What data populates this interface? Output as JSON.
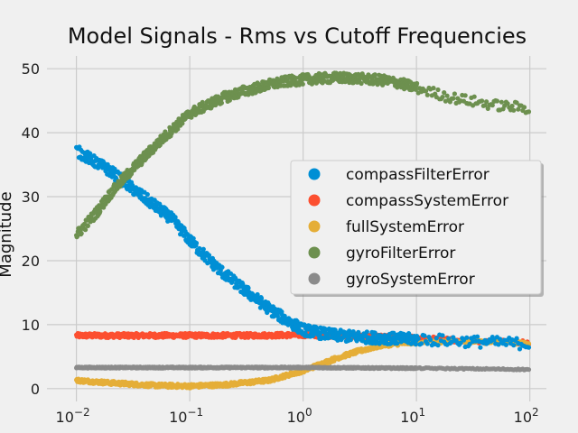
{
  "chart_data": {
    "type": "scatter",
    "title": "Model Signals - Rms vs Cutoff Frequencies",
    "ylabel": "Magnitude",
    "xlabel": "",
    "xscale": "log",
    "xlim": [
      0.0055,
      140
    ],
    "ylim": [
      -2,
      52
    ],
    "grid": true,
    "legend_placement": "center-right",
    "x_ticks": [
      {
        "value": 0.01,
        "base": "10",
        "exp": "−2"
      },
      {
        "value": 0.1,
        "base": "10",
        "exp": "−1"
      },
      {
        "value": 1,
        "base": "10",
        "exp": "0"
      },
      {
        "value": 10,
        "base": "10",
        "exp": "1"
      },
      {
        "value": 100,
        "base": "10",
        "exp": "2"
      }
    ],
    "y_ticks": [
      0,
      10,
      20,
      30,
      40,
      50
    ],
    "series": [
      {
        "name": "compassFilterError",
        "color": "#008fd5",
        "x": [
          0.01,
          0.02,
          0.03,
          0.05,
          0.07,
          0.1,
          0.15,
          0.2,
          0.3,
          0.5,
          0.7,
          1,
          1.5,
          2,
          3,
          5,
          7,
          10,
          20,
          50,
          100
        ],
        "y": [
          37.2,
          34.0,
          31.5,
          28.5,
          26.5,
          23.2,
          20.0,
          18.0,
          15.5,
          12.5,
          10.8,
          9.2,
          8.6,
          8.3,
          8.1,
          7.9,
          7.8,
          7.7,
          7.5,
          7.2,
          7.0
        ],
        "noise": 0.9
      },
      {
        "name": "compassSystemError",
        "color": "#fc4f30",
        "x": [
          0.01,
          0.03,
          0.1,
          0.3,
          1,
          3,
          10,
          30,
          100
        ],
        "y": [
          8.3,
          8.3,
          8.3,
          8.3,
          8.4,
          8.2,
          7.9,
          7.5,
          7.2
        ],
        "noise": 0.35
      },
      {
        "name": "fullSystemError",
        "color": "#e5ae38",
        "x": [
          0.01,
          0.02,
          0.05,
          0.1,
          0.2,
          0.5,
          1,
          2,
          3,
          5,
          10,
          20,
          50,
          100
        ],
        "y": [
          1.3,
          0.9,
          0.5,
          0.4,
          0.6,
          1.3,
          2.8,
          4.8,
          5.8,
          6.8,
          7.3,
          7.4,
          7.3,
          7.2
        ],
        "noise": 0.3
      },
      {
        "name": "gyroFilterError",
        "color": "#6d904f",
        "x": [
          0.01,
          0.015,
          0.02,
          0.03,
          0.05,
          0.07,
          0.1,
          0.15,
          0.2,
          0.3,
          0.5,
          0.7,
          1,
          1.5,
          2,
          3,
          5,
          7,
          10,
          20,
          50,
          100
        ],
        "y": [
          24.0,
          27.5,
          30.5,
          34.0,
          38.0,
          40.5,
          43.0,
          44.5,
          45.5,
          46.5,
          47.5,
          48.0,
          48.3,
          48.5,
          48.6,
          48.5,
          48.2,
          47.8,
          47.0,
          45.5,
          44.3,
          43.8
        ],
        "noise": 0.8
      },
      {
        "name": "gyroSystemError",
        "color": "#8b8b8b",
        "x": [
          0.01,
          0.1,
          1,
          10,
          30,
          100
        ],
        "y": [
          3.3,
          3.3,
          3.3,
          3.2,
          3.1,
          3.0
        ],
        "noise": 0.1
      }
    ]
  }
}
